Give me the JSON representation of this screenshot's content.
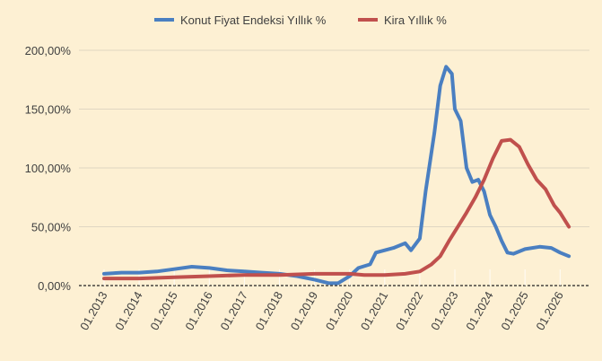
{
  "chart_data": {
    "type": "line",
    "title": "",
    "xlabel": "",
    "ylabel": "",
    "legend_position": "top",
    "grid": "horizontal",
    "ylim": [
      0,
      200
    ],
    "y_ticks": [
      0,
      50,
      100,
      150,
      200
    ],
    "y_tick_labels": [
      "0,00%",
      "50,00%",
      "100,00%",
      "150,00%",
      "200,00%"
    ],
    "x_range": [
      "2013-01",
      "2026-04"
    ],
    "x_ticks": [
      "2013-01",
      "2014-01",
      "2015-01",
      "2016-01",
      "2017-01",
      "2018-01",
      "2019-01",
      "2020-01",
      "2021-01",
      "2022-01",
      "2023-01",
      "2024-01",
      "2025-01",
      "2026-01"
    ],
    "x_tick_labels": [
      "01.2013",
      "01.2014",
      "01.2015",
      "01.2016",
      "01.2017",
      "01.2018",
      "01.2019",
      "01.2020",
      "01.2021",
      "01.2022",
      "01.2023",
      "01.2024",
      "01.2025",
      "01.2026"
    ],
    "series": [
      {
        "name": "Konut Fiyat Endeksi Yıllık %",
        "color": "#4a7fc1",
        "points": [
          [
            "2013-01",
            10
          ],
          [
            "2013-07",
            11
          ],
          [
            "2014-01",
            11
          ],
          [
            "2014-07",
            12
          ],
          [
            "2015-01",
            14
          ],
          [
            "2015-07",
            16
          ],
          [
            "2016-01",
            15
          ],
          [
            "2016-07",
            13
          ],
          [
            "2017-01",
            12
          ],
          [
            "2017-07",
            11
          ],
          [
            "2018-01",
            10
          ],
          [
            "2018-07",
            8
          ],
          [
            "2019-01",
            5
          ],
          [
            "2019-06",
            2
          ],
          [
            "2019-09",
            2
          ],
          [
            "2020-01",
            8
          ],
          [
            "2020-04",
            15
          ],
          [
            "2020-08",
            18
          ],
          [
            "2020-10",
            28
          ],
          [
            "2021-01",
            30
          ],
          [
            "2021-04",
            32
          ],
          [
            "2021-08",
            36
          ],
          [
            "2021-10",
            30
          ],
          [
            "2022-01",
            40
          ],
          [
            "2022-03",
            80
          ],
          [
            "2022-06",
            130
          ],
          [
            "2022-08",
            170
          ],
          [
            "2022-10",
            186
          ],
          [
            "2022-12",
            180
          ],
          [
            "2023-01",
            150
          ],
          [
            "2023-03",
            140
          ],
          [
            "2023-05",
            100
          ],
          [
            "2023-07",
            88
          ],
          [
            "2023-09",
            90
          ],
          [
            "2023-11",
            80
          ],
          [
            "2024-01",
            60
          ],
          [
            "2024-03",
            50
          ],
          [
            "2024-05",
            38
          ],
          [
            "2024-07",
            28
          ],
          [
            "2024-09",
            27
          ],
          [
            "2025-01",
            31
          ],
          [
            "2025-06",
            33
          ],
          [
            "2025-10",
            32
          ],
          [
            "2026-01",
            28
          ],
          [
            "2026-04",
            25
          ]
        ]
      },
      {
        "name": "Kira Yıllık %",
        "color": "#c0504d",
        "points": [
          [
            "2013-01",
            6
          ],
          [
            "2014-01",
            6
          ],
          [
            "2015-01",
            7
          ],
          [
            "2016-01",
            8
          ],
          [
            "2017-01",
            9
          ],
          [
            "2018-01",
            9
          ],
          [
            "2019-01",
            10
          ],
          [
            "2020-01",
            10
          ],
          [
            "2020-06",
            9
          ],
          [
            "2021-01",
            9
          ],
          [
            "2021-08",
            10
          ],
          [
            "2022-01",
            12
          ],
          [
            "2022-05",
            18
          ],
          [
            "2022-08",
            25
          ],
          [
            "2022-11",
            38
          ],
          [
            "2023-02",
            50
          ],
          [
            "2023-05",
            62
          ],
          [
            "2023-08",
            75
          ],
          [
            "2023-11",
            90
          ],
          [
            "2024-02",
            108
          ],
          [
            "2024-05",
            123
          ],
          [
            "2024-08",
            124
          ],
          [
            "2024-11",
            118
          ],
          [
            "2025-02",
            103
          ],
          [
            "2025-05",
            90
          ],
          [
            "2025-08",
            82
          ],
          [
            "2025-11",
            68
          ],
          [
            "2026-01",
            62
          ],
          [
            "2026-04",
            50
          ]
        ]
      }
    ]
  }
}
